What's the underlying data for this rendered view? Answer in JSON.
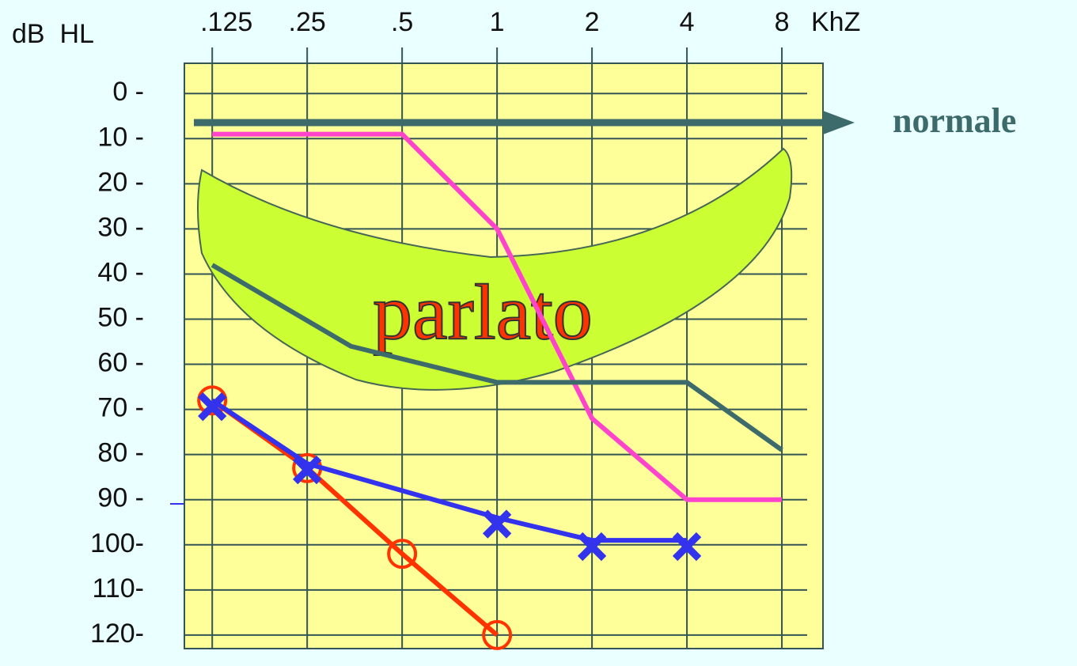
{
  "chart_data": {
    "type": "line",
    "y_label": "dB  HL",
    "x_label": "KhZ",
    "annotations": [
      "normale",
      "parlato"
    ],
    "xscale": "log",
    "xlim": [
      0.102,
      10.8
    ],
    "xticks": [
      {
        "value": 0.125,
        "label": ".125"
      },
      {
        "value": 0.25,
        "label": ".25"
      },
      {
        "value": 0.5,
        "label": ".5"
      },
      1,
      2,
      4,
      8
    ],
    "ylim": [
      -6.7,
      123
    ],
    "y_inverted": true,
    "yticks": [
      {
        "value": 0,
        "label": "0 -"
      },
      {
        "value": 10,
        "label": "10 -"
      },
      {
        "value": 20,
        "label": "20 -"
      },
      {
        "value": 30,
        "label": "30 -"
      },
      {
        "value": 40,
        "label": "40 -"
      },
      {
        "value": 50,
        "label": "50 -"
      },
      {
        "value": 60,
        "label": "60 -"
      },
      {
        "value": 70,
        "label": "70 -"
      },
      {
        "value": 80,
        "label": "80 -"
      },
      {
        "value": 90,
        "label": "90 -"
      },
      {
        "value": 100,
        "label": "100-"
      },
      {
        "value": 110,
        "label": "110-"
      },
      {
        "value": 120,
        "label": "120-"
      }
    ],
    "grid": true,
    "series": [
      {
        "color": "#ff44cc",
        "marker": null,
        "x": [
          0.125,
          0.25,
          0.5,
          1,
          2,
          4,
          8
        ],
        "values": [
          9,
          9,
          9,
          30,
          72,
          90,
          90
        ]
      },
      {
        "color": "#3d6b6b",
        "marker": null,
        "x": [
          0.125,
          0.344,
          1,
          2,
          4,
          8
        ],
        "values": [
          38,
          56,
          64,
          64,
          64,
          79
        ]
      },
      {
        "color": "#ff3300",
        "marker": "circle",
        "x": [
          0.125,
          0.25,
          0.5,
          1
        ],
        "values": [
          68,
          83,
          102,
          120
        ]
      },
      {
        "color": "#3333ee",
        "marker": "x",
        "x": [
          0.125,
          0.25,
          1,
          2,
          4
        ],
        "values": [
          68,
          82,
          94,
          99,
          99
        ]
      }
    ]
  }
}
